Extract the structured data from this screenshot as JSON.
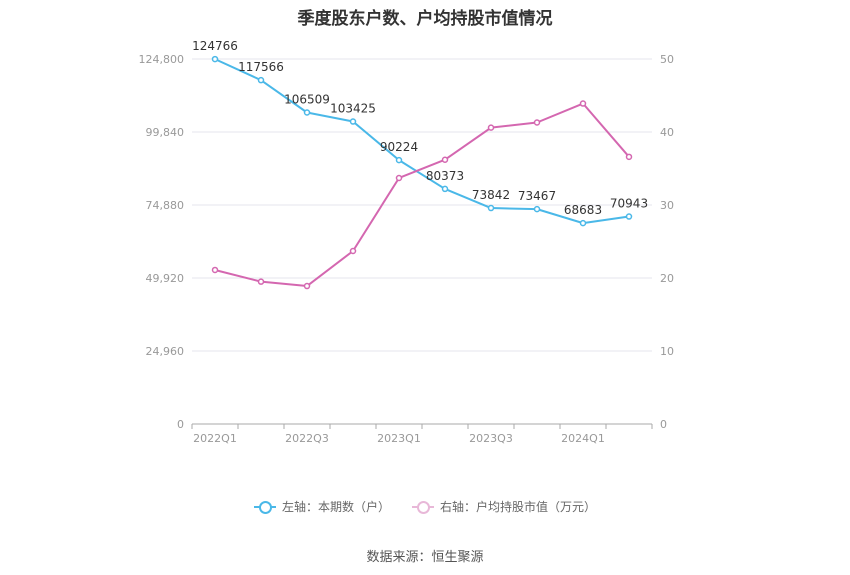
{
  "title": "季度股东户数、户均持股市值情况",
  "source": "数据来源：恒生聚源",
  "legend": [
    {
      "label": "左轴：本期数（户）",
      "color": "#4ab8e8"
    },
    {
      "label": "右轴：户均持股市值（万元）",
      "color": "#d467b0"
    }
  ],
  "chart_data": {
    "type": "line",
    "x": [
      "2022Q1",
      "2022Q2",
      "2022Q3",
      "2022Q4",
      "2023Q1",
      "2023Q2",
      "2023Q3",
      "2023Q4",
      "2024Q1",
      "2024Q2"
    ],
    "x_tick_labels": [
      "2022Q1",
      "2022Q3",
      "2023Q1",
      "2023Q3",
      "2024Q1"
    ],
    "series": [
      {
        "name": "左轴：本期数（户）",
        "axis": "left",
        "color": "#4ab8e8",
        "values": [
          124766,
          117566,
          106509,
          103425,
          90224,
          80373,
          73842,
          73467,
          68683,
          70943
        ],
        "labels": [
          "124766",
          "117566",
          "106509",
          "103425",
          "90224",
          "80373",
          "73842",
          "73467",
          "68683",
          "70943"
        ]
      },
      {
        "name": "右轴：户均持股市值（万元）",
        "axis": "right",
        "color": "#d467b0",
        "values": [
          21.1,
          19.5,
          18.9,
          23.7,
          33.7,
          36.2,
          40.6,
          41.3,
          43.9,
          36.6
        ]
      }
    ],
    "y_left": {
      "ylim": [
        0,
        124800
      ],
      "ticks": [
        "0",
        "24,960",
        "49,920",
        "74,880",
        "99,840",
        "124,800"
      ]
    },
    "y_right": {
      "ylim": [
        0,
        50
      ],
      "ticks": [
        "0",
        "10",
        "20",
        "30",
        "40",
        "50"
      ]
    },
    "grid": true,
    "legend_position": "bottom"
  }
}
